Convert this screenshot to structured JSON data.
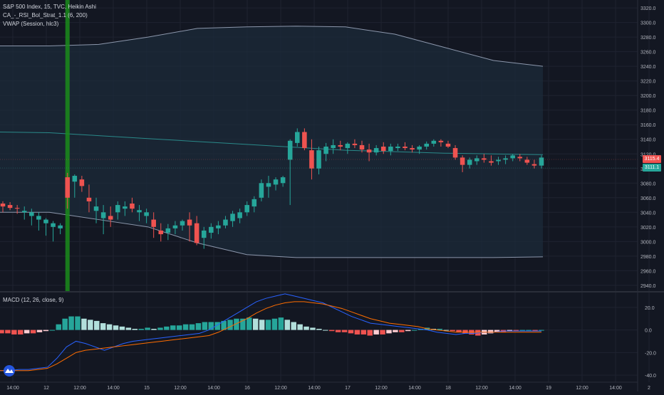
{
  "header": {
    "symbol_line": "S&P 500 Index, 15, TVC, Heikin Ashi",
    "indicator_1": "CA_-_RSI_Bol_Strat_1.1 (6, 200)",
    "indicator_2": "VWAP (Session, hlc3)",
    "macd_label": "MACD (12, 26, close, 9)"
  },
  "price_tags": {
    "last_red": "3115.4",
    "last_green": "3111.1"
  },
  "colors": {
    "background": "#131722",
    "up": "#26a69a",
    "down": "#ef5350",
    "band_fill": "#1c2b3a",
    "band_line": "#8c97ac",
    "vwap_line": "#2a8a8a",
    "macd_line": "#2962ff",
    "signal_line": "#ff6d00",
    "signal_bar": "#1b8c1b"
  },
  "chart_data": [
    {
      "type": "candlestick",
      "title": "S&P 500 Index, 15, TVC, Heikin Ashi",
      "y_ticks": [
        "3320.0",
        "3300.0",
        "3280.0",
        "3260.0",
        "3240.0",
        "3220.0",
        "3200.0",
        "3180.0",
        "3160.0",
        "3140.0",
        "3120.0",
        "3100.0",
        "3080.0",
        "3060.0",
        "3040.0",
        "3020.0",
        "3000.0",
        "2980.0",
        "2960.0",
        "2940.0"
      ],
      "ylim": [
        2935,
        3325
      ],
      "x_ticks": [
        "14:00",
        "12",
        "12:00",
        "14:00",
        "15",
        "12:00",
        "14:00",
        "16",
        "12:00",
        "14:00",
        "17",
        "12:00",
        "14:00",
        "18",
        "12:00",
        "14:00",
        "19",
        "12:00",
        "14:00",
        "2"
      ],
      "upper_band": [
        3268,
        3268,
        3270,
        3280,
        3292,
        3294,
        3295,
        3294,
        3284,
        3266,
        3248,
        3240
      ],
      "lower_band": [
        3040,
        3040,
        3030,
        3020,
        2998,
        2982,
        2978,
        2978,
        2978,
        2978,
        2978,
        2979
      ],
      "vwap": [
        3150,
        3149,
        3145,
        3141,
        3137,
        3133,
        3129,
        3125,
        3123,
        3121,
        3120,
        3119
      ],
      "candles_ohlc": [
        [
          3052,
          3055,
          3040,
          3048
        ],
        [
          3050,
          3054,
          3043,
          3046
        ],
        [
          3046,
          3050,
          3038,
          3045
        ],
        [
          3040,
          3048,
          3030,
          3042
        ],
        [
          3035,
          3045,
          3022,
          3040
        ],
        [
          3030,
          3040,
          3015,
          3035
        ],
        [
          3025,
          3032,
          3008,
          3030
        ],
        [
          3020,
          3028,
          3000,
          3025
        ],
        [
          3018,
          3025,
          3010,
          3022
        ],
        [
          3088,
          3094,
          3045,
          3060
        ],
        [
          3082,
          3092,
          3060,
          3090
        ],
        [
          3085,
          3090,
          3068,
          3076
        ],
        [
          3060,
          3078,
          3040,
          3055
        ],
        [
          3042,
          3060,
          3025,
          3048
        ],
        [
          3032,
          3050,
          3010,
          3040
        ],
        [
          3035,
          3048,
          3020,
          3030
        ],
        [
          3040,
          3055,
          3030,
          3050
        ],
        [
          3045,
          3055,
          3035,
          3048
        ],
        [
          3052,
          3060,
          3040,
          3045
        ],
        [
          3040,
          3050,
          3028,
          3043
        ],
        [
          3035,
          3045,
          3025,
          3040
        ],
        [
          3030,
          3040,
          3005,
          3020
        ],
        [
          3015,
          3025,
          3000,
          3010
        ],
        [
          3012,
          3024,
          3002,
          3018
        ],
        [
          3018,
          3028,
          3010,
          3022
        ],
        [
          3022,
          3030,
          3015,
          3028
        ],
        [
          3030,
          3040,
          3000,
          3022
        ],
        [
          3025,
          3035,
          2995,
          2998
        ],
        [
          3005,
          3020,
          2990,
          3015
        ],
        [
          3012,
          3025,
          3004,
          3020
        ],
        [
          3018,
          3028,
          3010,
          3022
        ],
        [
          3022,
          3035,
          3018,
          3030
        ],
        [
          3028,
          3042,
          3020,
          3038
        ],
        [
          3032,
          3045,
          3025,
          3040
        ],
        [
          3040,
          3055,
          3035,
          3050
        ],
        [
          3048,
          3062,
          3040,
          3058
        ],
        [
          3060,
          3085,
          3055,
          3080
        ],
        [
          3075,
          3090,
          3060,
          3080
        ],
        [
          3078,
          3088,
          3070,
          3085
        ],
        [
          3080,
          3090,
          3075,
          3088
        ],
        [
          3112,
          3140,
          3050,
          3138
        ],
        [
          3135,
          3155,
          3130,
          3150
        ],
        [
          3150,
          3155,
          3125,
          3128
        ],
        [
          3125,
          3140,
          3085,
          3100
        ],
        [
          3100,
          3130,
          3092,
          3125
        ],
        [
          3120,
          3135,
          3110,
          3130
        ],
        [
          3128,
          3140,
          3120,
          3132
        ],
        [
          3132,
          3138,
          3125,
          3130
        ],
        [
          3128,
          3136,
          3120,
          3134
        ],
        [
          3134,
          3140,
          3128,
          3132
        ],
        [
          3132,
          3138,
          3122,
          3126
        ],
        [
          3126,
          3134,
          3110,
          3122
        ],
        [
          3122,
          3132,
          3118,
          3128
        ],
        [
          3130,
          3136,
          3120,
          3124
        ],
        [
          3124,
          3134,
          3118,
          3130
        ],
        [
          3128,
          3134,
          3124,
          3130
        ],
        [
          3130,
          3136,
          3125,
          3128
        ],
        [
          3128,
          3132,
          3122,
          3126
        ],
        [
          3126,
          3132,
          3120,
          3130
        ],
        [
          3130,
          3137,
          3126,
          3134
        ],
        [
          3134,
          3140,
          3130,
          3138
        ],
        [
          3138,
          3140,
          3130,
          3136
        ],
        [
          3134,
          3138,
          3128,
          3130
        ],
        [
          3128,
          3132,
          3112,
          3115
        ],
        [
          3115,
          3118,
          3095,
          3105
        ],
        [
          3105,
          3115,
          3100,
          3112
        ],
        [
          3110,
          3118,
          3105,
          3114
        ],
        [
          3114,
          3120,
          3108,
          3112
        ],
        [
          3110,
          3118,
          3104,
          3108
        ],
        [
          3110,
          3116,
          3105,
          3112
        ],
        [
          3112,
          3118,
          3106,
          3114
        ],
        [
          3114,
          3120,
          3110,
          3118
        ],
        [
          3116,
          3120,
          3110,
          3114
        ],
        [
          3112,
          3116,
          3105,
          3108
        ],
        [
          3106,
          3112,
          3100,
          3104
        ],
        [
          3104,
          3118,
          3100,
          3115
        ]
      ],
      "signal_bar_index": 9
    },
    {
      "type": "bar",
      "title": "MACD (12, 26, close, 9)",
      "y_ticks": [
        "20.0",
        "0.0",
        "-20.0",
        "-40.0"
      ],
      "ylim": [
        -45,
        30
      ],
      "histogram": [
        -3,
        -3,
        -4,
        -4,
        -3,
        -3,
        -2,
        -1,
        0,
        5,
        10,
        12,
        12,
        10,
        9,
        8,
        6,
        5,
        4,
        3,
        2,
        1,
        1,
        2,
        1,
        2,
        3,
        4,
        4,
        5,
        5,
        6,
        7,
        7,
        7,
        8,
        9,
        10,
        10,
        11,
        10,
        9,
        9,
        10,
        11,
        9,
        7,
        5,
        3,
        2,
        1,
        0,
        -1,
        -2,
        -2,
        -3,
        -4,
        -4,
        -5,
        -4,
        -4,
        -3,
        -2,
        -2,
        -1,
        0,
        1,
        2,
        1,
        1,
        0,
        -1,
        -2,
        -3,
        -4,
        -5,
        -4,
        -3,
        -2,
        -2,
        -1,
        -1,
        0,
        0,
        -1,
        0
      ],
      "macd": [
        -36,
        -36,
        -35,
        -35,
        -34,
        -33,
        -25,
        -15,
        -10,
        -12,
        -15,
        -18,
        -15,
        -12,
        -10,
        -9,
        -8,
        -7,
        -6,
        -5,
        -4,
        -3,
        0,
        5,
        10,
        15,
        20,
        25,
        28,
        30,
        32,
        30,
        28,
        26,
        24,
        20,
        16,
        12,
        9,
        6,
        5,
        4,
        3,
        2,
        1,
        0,
        -2,
        -3,
        -4,
        -3,
        -3,
        -2,
        -2,
        -1,
        -1,
        -1,
        -1,
        -1
      ],
      "signal": [
        -36,
        -36,
        -36,
        -36,
        -35,
        -34,
        -30,
        -25,
        -20,
        -18,
        -17,
        -16,
        -15,
        -14,
        -13,
        -12,
        -11,
        -10,
        -9,
        -8,
        -7,
        -6,
        -5,
        -2,
        2,
        6,
        10,
        15,
        19,
        22,
        24,
        25,
        25,
        24,
        23,
        21,
        19,
        16,
        13,
        10,
        8,
        6,
        5,
        4,
        3,
        1,
        0,
        -1,
        -2,
        -2,
        -2,
        -2,
        -2,
        -2,
        -2,
        -2,
        -2,
        -2
      ]
    }
  ]
}
